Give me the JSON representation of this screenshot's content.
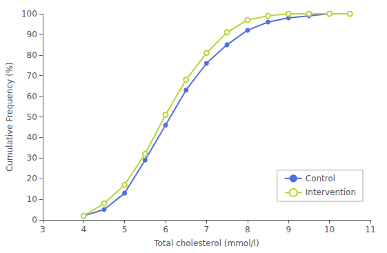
{
  "chart_data": {
    "type": "line",
    "x": [
      4.0,
      4.5,
      5.0,
      5.5,
      6.0,
      6.5,
      7.0,
      7.5,
      8.0,
      8.5,
      9.0,
      9.5,
      10.0,
      10.5
    ],
    "series": [
      {
        "name": "Control",
        "marker": "circle",
        "values": [
          2,
          5,
          13,
          29,
          46,
          63,
          76,
          85,
          92,
          96,
          98,
          99,
          100,
          100
        ]
      },
      {
        "name": "Intervention",
        "marker": "open_circle",
        "values": [
          2,
          8,
          17,
          32,
          51,
          68,
          81,
          91,
          97,
          99,
          100,
          100,
          100,
          100
        ]
      }
    ],
    "xlabel": "Total cholesterol (mmol/l)",
    "ylabel": "Cumulative Frequency (%)",
    "xlim": [
      3,
      11
    ],
    "ylim": [
      0,
      100
    ],
    "xticks": [
      3,
      4,
      5,
      6,
      7,
      8,
      9,
      10,
      11
    ],
    "yticks": [
      0,
      10,
      20,
      30,
      40,
      50,
      60,
      70,
      80,
      90,
      100
    ],
    "grid": false,
    "legend": "lower right"
  }
}
